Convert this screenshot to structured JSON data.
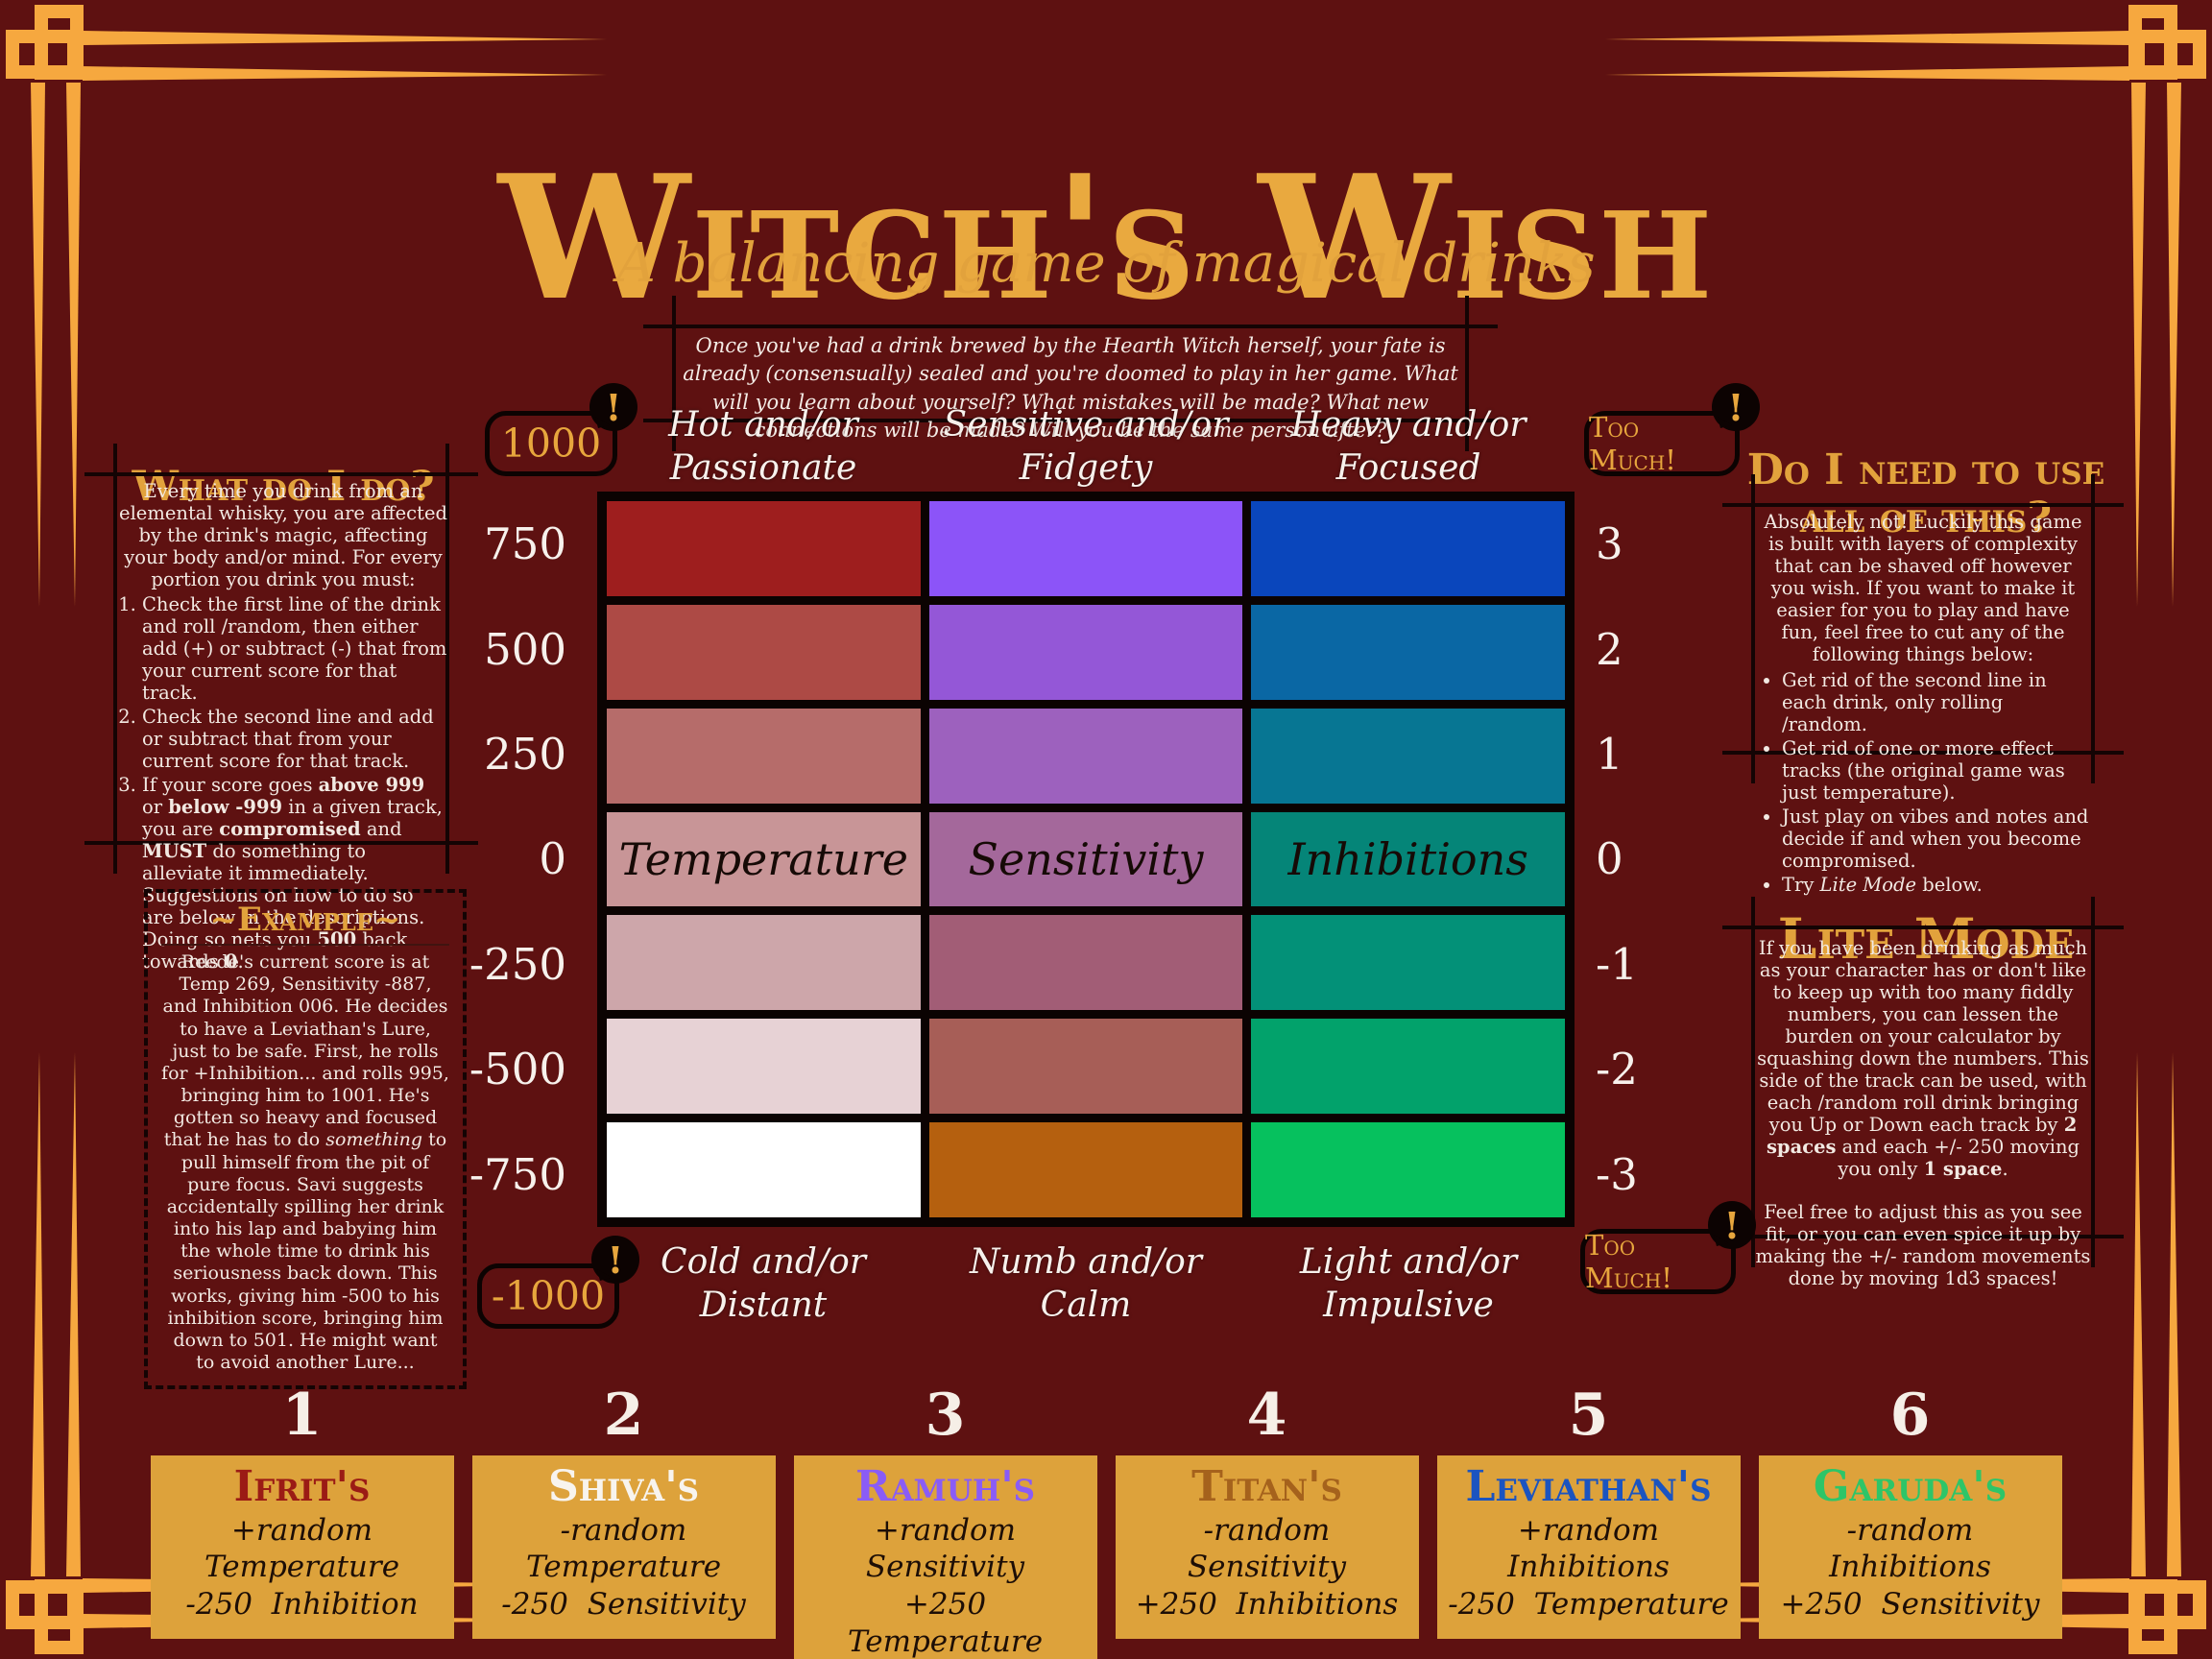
{
  "colors": {
    "background": "#5e1111",
    "gold": "#e7a63d",
    "frame_gold": "#f6a83f",
    "card_background": "#dda23b",
    "grid_border": "#0b0302"
  },
  "header": {
    "title": "Witch's Wish",
    "subtitle": "A balancing game of magical drinks",
    "intro": "Once you've had a drink brewed by the Hearth Witch herself, your fate is already (consensually) sealed and you're doomed to play in her game. What will you learn about yourself? What mistakes will be made? What new connections will be made? Will you be the same person after?"
  },
  "left": {
    "heading": "What do I do?",
    "intro": "Every time you drink from an elemental whisky, you are affected by the drink's magic, affecting your body and/or mind. For every portion you drink you must:",
    "steps": [
      "Check the first line of the drink and roll /random, then either add (+) or subtract (-) that from your current score for that track.",
      "Check the second line and add or subtract that from your current score for that track.",
      "If your score goes **above 999** or **below -999** in a given track, you are **compromised** and **MUST** do something to alleviate it immediately. Suggestions on how to do so are below in the descriptions. Doing so nets you **500** back towards **0**."
    ],
    "example_heading": "~Example~",
    "example": "Reede's current score is at Temp 269, Sensitivity -887, and Inhibition 006. He decides to have a Leviathan's Lure, just to be safe. First, he rolls for +Inhibition... and rolls 995, bringing him to 1001. He's gotten so heavy and focused that he has to do *something* to pull himself from the pit of pure focus. Savi suggests accidentally spilling her drink into his lap and babying him the whole time to drink his seriousness back down. This works, giving him -500 to his inhibition score, bringing him down to 501. He might want to avoid another Lure..."
  },
  "right": {
    "heading": "Do I need to use all of this?",
    "intro": "Absolutely not! Luckily this game is built with layers of complexity that can be shaved off however you wish. If you want to make it easier for you to play and have fun, feel free to cut any of the following things below:",
    "bullets": [
      "Get rid of the second line in each drink, only rolling /random.",
      "Get rid of one or more effect tracks (the original game was just temperature).",
      "Just play on vibes and notes and decide if and when you become compromised.",
      "Try *Lite Mode* below."
    ],
    "lite_heading": "Lite Mode",
    "lite_p1": "If you have been drinking as much as your character has or don't like to keep up with too many fiddly numbers, you can lessen the burden on your calculator by squashing down the numbers. This side of the track can be used, with each /random roll drink bringing you Up or Down each track by **2 spaces** and each +/- 250 moving you only **1 space**.",
    "lite_p2": "Feel free to adjust this as you see fit, or you can even spice it up by making the +/- random movements done by moving 1d3 spaces!"
  },
  "board": {
    "warning": "!",
    "top_labels": [
      "Hot and/or Passionate",
      "Sensitive and/or Fidgety",
      "Heavy and/or Focused"
    ],
    "bottom_labels": [
      "Cold and/or Distant",
      "Numb and/or Calm",
      "Light and/or Impulsive"
    ],
    "left_scale_top": "1000",
    "left_scale": [
      "750",
      "500",
      "250",
      "0",
      "-250",
      "-500",
      "-750"
    ],
    "left_scale_bottom": "-1000",
    "right_scale_top": "Too Much!",
    "right_scale": [
      "3",
      "2",
      "1",
      "0",
      "-1",
      "-2",
      "-3"
    ],
    "right_scale_bottom": "Too Much!",
    "columns": [
      {
        "name": "Temperature",
        "colors": [
          "#9e1e1e",
          "#ad4a45",
          "#b66c6a",
          "#c89597",
          "#cda6aa",
          "#e7d2d5",
          "#ffffff"
        ]
      },
      {
        "name": "Sensitivity",
        "colors": [
          "#8c54f8",
          "#9457d7",
          "#9d61be",
          "#a4689b",
          "#a25d76",
          "#a75e57",
          "#b5600f"
        ]
      },
      {
        "name": "Inhibitions",
        "colors": [
          "#0a46bc",
          "#0a67a4",
          "#077693",
          "#058578",
          "#039178",
          "#02a26b",
          "#06c15e"
        ]
      }
    ]
  },
  "drinks": [
    {
      "number": "1",
      "name": "Ifrit's",
      "name_color": "#9b1b15",
      "line1": "+random Temperature",
      "line2": "-250  Inhibition"
    },
    {
      "number": "2",
      "name": "Shiva's",
      "name_color": "#f8f4ee",
      "line1": "-random Temperature",
      "line2": "-250  Sensitivity"
    },
    {
      "number": "3",
      "name": "Ramuh's",
      "name_color": "#8a5cf6",
      "line1": "+random Sensitivity",
      "line2": "+250  Temperature"
    },
    {
      "number": "4",
      "name": "Titan's",
      "name_color": "#a5621c",
      "line1": "-random Sensitivity",
      "line2": "+250  Inhibitions"
    },
    {
      "number": "5",
      "name": "Leviathan's",
      "name_color": "#1b54c0",
      "line1": "+random Inhibitions",
      "line2": "-250  Temperature"
    },
    {
      "number": "6",
      "name": "Garuda's",
      "name_color": "#2ec568",
      "line1": "-random Inhibitions",
      "line2": "+250  Sensitivity"
    }
  ]
}
